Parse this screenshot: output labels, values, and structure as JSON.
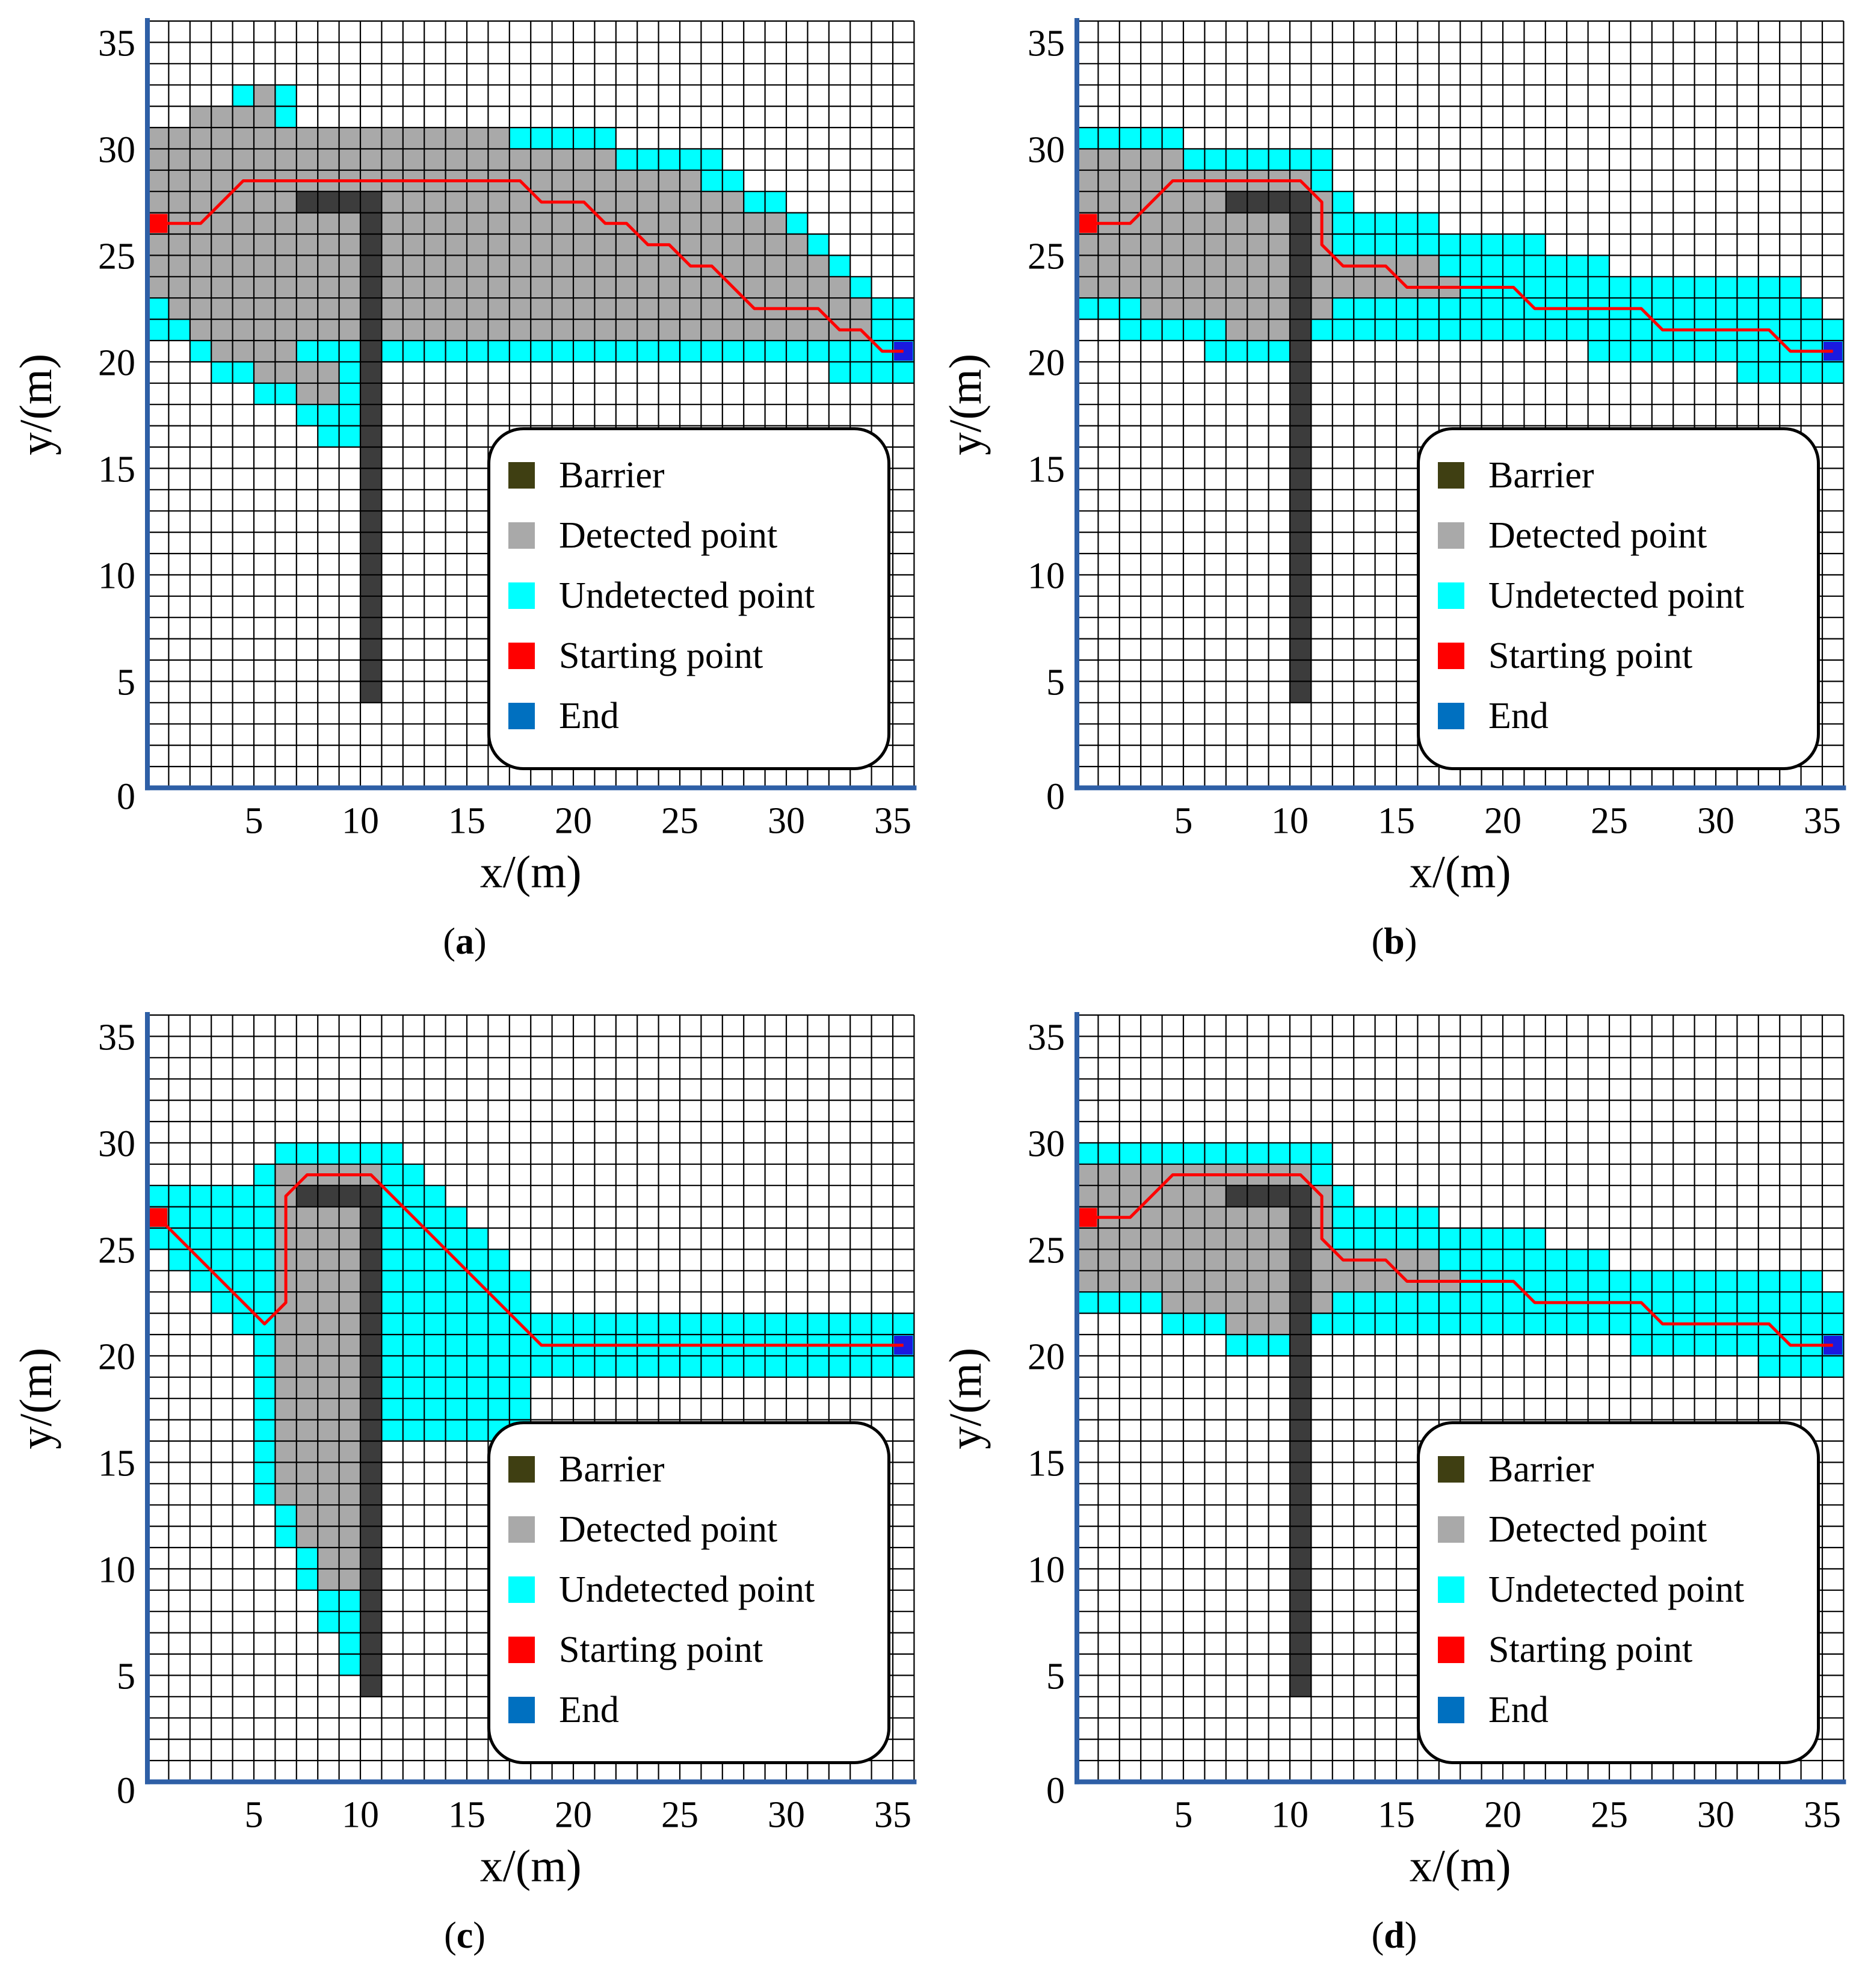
{
  "chart_data": [
    {
      "type": "heatmap",
      "panel": "(a)",
      "xlabel": "x/(m)",
      "ylabel": "y/(m)",
      "xlim": [
        0,
        36
      ],
      "ylim": [
        0,
        36
      ],
      "x_ticks": [
        "5",
        "10",
        "15",
        "20",
        "25",
        "30",
        "35"
      ],
      "y_ticks": [
        "35",
        "30",
        "25",
        "20",
        "15",
        "10",
        "5",
        "0"
      ],
      "barrier": {
        "vertical": {
          "x": [
            10,
            11
          ],
          "y": [
            4,
            28
          ]
        },
        "horizontal": {
          "x": [
            7,
            11
          ],
          "y": [
            27,
            28
          ]
        }
      },
      "start": [
        0.5,
        26.5
      ],
      "end": [
        35.5,
        20.5
      ],
      "path": [
        [
          0.5,
          26.5
        ],
        [
          2.5,
          26.5
        ],
        [
          4.5,
          28.5
        ],
        [
          17.5,
          28.5
        ],
        [
          18.5,
          27.5
        ],
        [
          20.5,
          27.5
        ],
        [
          21.5,
          26.5
        ],
        [
          22.5,
          26.5
        ],
        [
          23.5,
          25.5
        ],
        [
          24.5,
          25.5
        ],
        [
          25.5,
          24.5
        ],
        [
          26.5,
          24.5
        ],
        [
          28.5,
          22.5
        ],
        [
          31.5,
          22.5
        ],
        [
          32.5,
          21.5
        ],
        [
          33.5,
          21.5
        ],
        [
          34.5,
          20.5
        ],
        [
          35.5,
          20.5
        ]
      ],
      "detected_rows": [
        [
          32,
          5,
          5
        ],
        [
          31,
          2,
          5
        ],
        [
          30,
          0,
          16
        ],
        [
          29,
          0,
          21
        ],
        [
          28,
          0,
          25
        ],
        [
          27,
          0,
          27
        ],
        [
          26,
          0,
          29
        ],
        [
          25,
          0,
          30
        ],
        [
          24,
          0,
          31
        ],
        [
          23,
          0,
          32
        ],
        [
          22,
          1,
          33
        ],
        [
          21,
          2,
          33
        ],
        [
          20,
          3,
          6
        ],
        [
          19,
          5,
          8
        ],
        [
          18,
          7,
          8
        ]
      ],
      "undetected_rows": [
        [
          32,
          4,
          6
        ],
        [
          31,
          2,
          6
        ],
        [
          30,
          0,
          21
        ],
        [
          29,
          0,
          26
        ],
        [
          28,
          0,
          27
        ],
        [
          27,
          0,
          29
        ],
        [
          26,
          0,
          30
        ],
        [
          25,
          0,
          31
        ],
        [
          24,
          0,
          32
        ],
        [
          23,
          0,
          33
        ],
        [
          22,
          0,
          35
        ],
        [
          21,
          0,
          35
        ],
        [
          20,
          2,
          35
        ],
        [
          19,
          3,
          9
        ],
        [
          19,
          32,
          35
        ],
        [
          18,
          5,
          9
        ],
        [
          17,
          7,
          9
        ],
        [
          16,
          8,
          9
        ]
      ]
    },
    {
      "type": "heatmap",
      "panel": "(b)",
      "xlabel": "x/(m)",
      "ylabel": "y/(m)",
      "xlim": [
        0,
        36
      ],
      "ylim": [
        0,
        36
      ],
      "x_ticks": [
        "5",
        "10",
        "15",
        "20",
        "25",
        "30",
        "35"
      ],
      "y_ticks": [
        "35",
        "30",
        "25",
        "20",
        "15",
        "10",
        "5",
        "0"
      ],
      "barrier": {
        "vertical": {
          "x": [
            10,
            11
          ],
          "y": [
            4,
            28
          ]
        },
        "horizontal": {
          "x": [
            7,
            11
          ],
          "y": [
            27,
            28
          ]
        }
      },
      "start": [
        0.5,
        26.5
      ],
      "end": [
        35.5,
        20.5
      ],
      "path": [
        [
          0.5,
          26.5
        ],
        [
          2.5,
          26.5
        ],
        [
          4.5,
          28.5
        ],
        [
          10.5,
          28.5
        ],
        [
          11.5,
          27.5
        ],
        [
          11.5,
          25.5
        ],
        [
          12.5,
          24.5
        ],
        [
          14.5,
          24.5
        ],
        [
          15.5,
          23.5
        ],
        [
          20.5,
          23.5
        ],
        [
          21.5,
          22.5
        ],
        [
          26.5,
          22.5
        ],
        [
          27.5,
          21.5
        ],
        [
          32.5,
          21.5
        ],
        [
          33.5,
          20.5
        ],
        [
          35.5,
          20.5
        ]
      ],
      "detected_rows": [
        [
          29,
          0,
          4
        ],
        [
          28,
          0,
          10
        ],
        [
          27,
          0,
          11
        ],
        [
          26,
          0,
          11
        ],
        [
          25,
          0,
          11
        ],
        [
          24,
          0,
          16
        ],
        [
          23,
          0,
          17
        ],
        [
          22,
          3,
          11
        ],
        [
          21,
          7,
          10
        ]
      ],
      "undetected_rows": [
        [
          30,
          0,
          4
        ],
        [
          29,
          0,
          11
        ],
        [
          28,
          0,
          11
        ],
        [
          27,
          0,
          12
        ],
        [
          26,
          0,
          16
        ],
        [
          25,
          0,
          21
        ],
        [
          24,
          0,
          24
        ],
        [
          23,
          0,
          33
        ],
        [
          22,
          0,
          34
        ],
        [
          21,
          2,
          35
        ],
        [
          20,
          6,
          10
        ],
        [
          20,
          24,
          35
        ],
        [
          19,
          31,
          35
        ]
      ]
    },
    {
      "type": "heatmap",
      "panel": "(c)",
      "xlabel": "x/(m)",
      "ylabel": "y/(m)",
      "xlim": [
        0,
        36
      ],
      "ylim": [
        0,
        36
      ],
      "x_ticks": [
        "5",
        "10",
        "15",
        "20",
        "25",
        "30",
        "35"
      ],
      "y_ticks": [
        "35",
        "30",
        "25",
        "20",
        "15",
        "10",
        "5",
        "0"
      ],
      "barrier": {
        "vertical": {
          "x": [
            10,
            11
          ],
          "y": [
            4,
            28
          ]
        },
        "horizontal": {
          "x": [
            7,
            11
          ],
          "y": [
            27,
            28
          ]
        }
      },
      "start": [
        0.5,
        26.5
      ],
      "end": [
        35.5,
        20.5
      ],
      "path": [
        [
          0.5,
          26.5
        ],
        [
          5.5,
          21.5
        ],
        [
          6.5,
          22.5
        ],
        [
          6.5,
          27.5
        ],
        [
          7.5,
          28.5
        ],
        [
          10.5,
          28.5
        ],
        [
          18.5,
          20.5
        ],
        [
          35.5,
          20.5
        ]
      ],
      "detected_rows": [
        [
          28,
          6,
          10
        ],
        [
          27,
          6,
          9
        ],
        [
          26,
          6,
          9
        ],
        [
          25,
          6,
          9
        ],
        [
          24,
          6,
          9
        ],
        [
          23,
          6,
          9
        ],
        [
          22,
          6,
          9
        ],
        [
          21,
          6,
          9
        ],
        [
          20,
          6,
          9
        ],
        [
          19,
          6,
          9
        ],
        [
          18,
          6,
          9
        ],
        [
          17,
          6,
          9
        ],
        [
          16,
          6,
          9
        ],
        [
          15,
          6,
          9
        ],
        [
          14,
          6,
          9
        ],
        [
          13,
          6,
          9
        ],
        [
          12,
          7,
          9
        ],
        [
          11,
          7,
          9
        ],
        [
          10,
          8,
          9
        ],
        [
          9,
          8,
          9
        ]
      ],
      "undetected_rows": [
        [
          29,
          6,
          11
        ],
        [
          28,
          5,
          12
        ],
        [
          27,
          0,
          13
        ],
        [
          26,
          0,
          14
        ],
        [
          25,
          0,
          15
        ],
        [
          24,
          1,
          16
        ],
        [
          23,
          2,
          17
        ],
        [
          22,
          3,
          17
        ],
        [
          21,
          4,
          35
        ],
        [
          20,
          5,
          35
        ],
        [
          19,
          5,
          35
        ],
        [
          18,
          5,
          17
        ],
        [
          17,
          5,
          17
        ],
        [
          16,
          5,
          17
        ],
        [
          15,
          5,
          9
        ],
        [
          14,
          5,
          9
        ],
        [
          13,
          5,
          9
        ],
        [
          12,
          6,
          9
        ],
        [
          11,
          6,
          9
        ],
        [
          10,
          7,
          9
        ],
        [
          9,
          7,
          9
        ],
        [
          8,
          8,
          9
        ],
        [
          7,
          8,
          9
        ],
        [
          6,
          9,
          9
        ],
        [
          5,
          9,
          9
        ]
      ]
    },
    {
      "type": "heatmap",
      "panel": "(d)",
      "xlabel": "x/(m)",
      "ylabel": "y/(m)",
      "xlim": [
        0,
        36
      ],
      "ylim": [
        0,
        36
      ],
      "x_ticks": [
        "5",
        "10",
        "15",
        "20",
        "25",
        "30",
        "35"
      ],
      "y_ticks": [
        "35",
        "30",
        "25",
        "20",
        "15",
        "10",
        "5",
        "0"
      ],
      "barrier": {
        "vertical": {
          "x": [
            10,
            11
          ],
          "y": [
            4,
            28
          ]
        },
        "horizontal": {
          "x": [
            7,
            11
          ],
          "y": [
            27,
            28
          ]
        }
      },
      "start": [
        0.5,
        26.5
      ],
      "end": [
        35.5,
        20.5
      ],
      "path": [
        [
          0.5,
          26.5
        ],
        [
          2.5,
          26.5
        ],
        [
          4.5,
          28.5
        ],
        [
          10.5,
          28.5
        ],
        [
          11.5,
          27.5
        ],
        [
          11.5,
          25.5
        ],
        [
          12.5,
          24.5
        ],
        [
          14.5,
          24.5
        ],
        [
          15.5,
          23.5
        ],
        [
          20.5,
          23.5
        ],
        [
          21.5,
          22.5
        ],
        [
          26.5,
          22.5
        ],
        [
          27.5,
          21.5
        ],
        [
          32.5,
          21.5
        ],
        [
          33.5,
          20.5
        ],
        [
          35.5,
          20.5
        ]
      ],
      "detected_rows": [
        [
          28,
          0,
          10
        ],
        [
          27,
          0,
          11
        ],
        [
          26,
          0,
          11
        ],
        [
          25,
          0,
          11
        ],
        [
          24,
          0,
          16
        ],
        [
          23,
          0,
          17
        ],
        [
          22,
          4,
          11
        ],
        [
          21,
          7,
          10
        ]
      ],
      "undetected_rows": [
        [
          29,
          0,
          11
        ],
        [
          28,
          0,
          11
        ],
        [
          27,
          0,
          12
        ],
        [
          26,
          0,
          16
        ],
        [
          25,
          0,
          21
        ],
        [
          24,
          0,
          24
        ],
        [
          23,
          0,
          34
        ],
        [
          22,
          0,
          35
        ],
        [
          21,
          4,
          35
        ],
        [
          20,
          7,
          10
        ],
        [
          20,
          26,
          35
        ],
        [
          19,
          32,
          35
        ]
      ]
    }
  ],
  "legend": {
    "items": [
      {
        "label": "Barrier",
        "color": "#3f3f12"
      },
      {
        "label": "Detected point",
        "color": "#a9a9a9"
      },
      {
        "label": "Undetected point",
        "color": "#00ffff"
      },
      {
        "label": "Starting point",
        "color": "#ff0000"
      },
      {
        "label": "End",
        "color": "#0070c0"
      }
    ]
  },
  "panels": [
    {
      "label": "a"
    },
    {
      "label": "b"
    },
    {
      "label": "c"
    },
    {
      "label": "d"
    }
  ],
  "colors": {
    "barrier_cell": "#3c3c3c",
    "detected": "#a9a9a9",
    "undetected": "#00ffff",
    "path": "#ff0000",
    "start": "#ff0000",
    "end": "#1a1ae0",
    "axis": "#2e5fa6"
  }
}
